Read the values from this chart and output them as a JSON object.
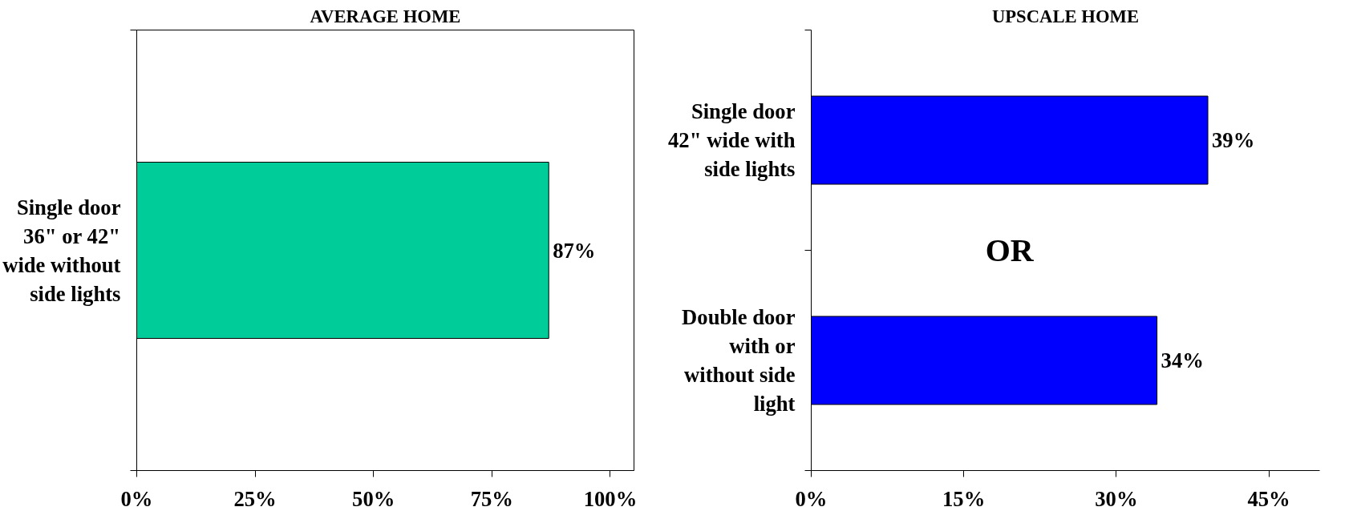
{
  "chart_data": [
    {
      "type": "bar",
      "orientation": "horizontal",
      "title": "AVERAGE HOME",
      "categories": [
        "Single door 36\" or 42\" wide without side lights"
      ],
      "values": [
        87
      ],
      "color": "#00cc99",
      "value_labels": [
        "87%"
      ],
      "xlim": [
        0,
        105
      ],
      "xticks": [
        {
          "value": 0,
          "label": "0%"
        },
        {
          "value": 25,
          "label": "25%"
        },
        {
          "value": 50,
          "label": "50%"
        },
        {
          "value": 75,
          "label": "75%"
        },
        {
          "value": 100,
          "label": "100%"
        }
      ],
      "grid": false
    },
    {
      "type": "bar",
      "orientation": "horizontal",
      "title": "UPSCALE HOME",
      "categories": [
        "Single door 42\" wide with side lights",
        "Double door with or without side light"
      ],
      "values": [
        39,
        34
      ],
      "color": "#0000ff",
      "value_labels": [
        "39%",
        "34%"
      ],
      "xlim": [
        0,
        50
      ],
      "xticks": [
        {
          "value": 0,
          "label": "0%"
        },
        {
          "value": 15,
          "label": "15%"
        },
        {
          "value": 30,
          "label": "30%"
        },
        {
          "value": 45,
          "label": "45%"
        }
      ],
      "grid": false,
      "annotations": [
        "OR"
      ]
    }
  ]
}
